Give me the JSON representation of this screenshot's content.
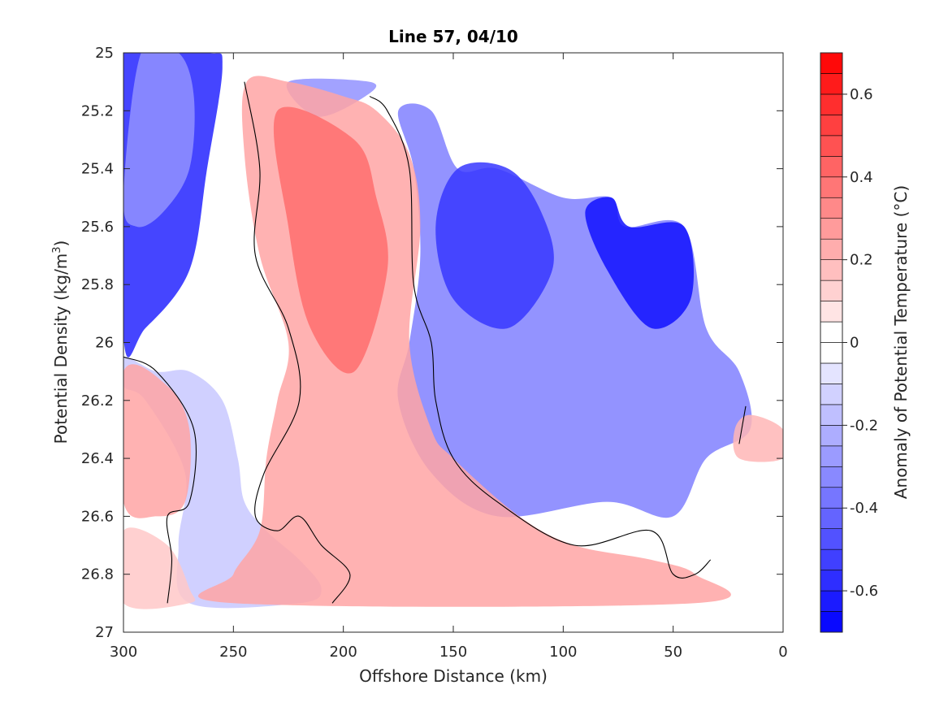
{
  "chart_data": {
    "type": "contour",
    "title": "Line 57, 04/10",
    "xlabel": "Offshore Distance (km)",
    "ylabel_main": "Potential Density (kg/m",
    "ylabel_sup": "3",
    "ylabel_close": ")",
    "xlim": [
      300,
      0
    ],
    "ylim": [
      25,
      27
    ],
    "x_reversed": true,
    "y_reversed": true,
    "xticks": [
      300,
      250,
      200,
      150,
      100,
      50,
      0
    ],
    "yticks": [
      25,
      25.2,
      25.4,
      25.6,
      25.8,
      26,
      26.2,
      26.4,
      26.6,
      26.8,
      27
    ],
    "colorbar": {
      "label": "Anomaly of Potential Temperature (°C)",
      "min": -0.7,
      "max": 0.7,
      "step": 0.05,
      "ticks": [
        -0.6,
        -0.4,
        -0.2,
        0,
        0.2,
        0.4,
        0.6
      ],
      "negative_color": "#0000ff",
      "positive_color": "#ff0000",
      "neutral_color": "#ffffff"
    },
    "zero_contour_color": "#000000",
    "regions": [
      {
        "sign": "negative",
        "level": -0.6,
        "points": [
          [
            300,
            25
          ],
          [
            262,
            25
          ],
          [
            255,
            25.05
          ],
          [
            262,
            25.4
          ],
          [
            270,
            25.75
          ],
          [
            290,
            25.95
          ],
          [
            300,
            25.98
          ]
        ]
      },
      {
        "sign": "negative",
        "level": -0.3,
        "points": [
          [
            292,
            25
          ],
          [
            275,
            25
          ],
          [
            268,
            25.15
          ],
          [
            270,
            25.4
          ],
          [
            282,
            25.55
          ],
          [
            294,
            25.6
          ],
          [
            300,
            25.5
          ]
        ]
      },
      {
        "sign": "negative",
        "level": -0.15,
        "points": [
          [
            300,
            26.05
          ],
          [
            285,
            26.1
          ],
          [
            270,
            26.1
          ],
          [
            255,
            26.2
          ],
          [
            248,
            26.4
          ],
          [
            245,
            26.55
          ],
          [
            235,
            26.65
          ],
          [
            220,
            26.75
          ],
          [
            210,
            26.85
          ],
          [
            220,
            26.9
          ],
          [
            270,
            26.9
          ],
          [
            275,
            26.7
          ],
          [
            272,
            26.45
          ],
          [
            290,
            26.2
          ],
          [
            300,
            26.15
          ]
        ]
      },
      {
        "sign": "negative",
        "level": -0.3,
        "points": [
          [
            188,
            25.1
          ],
          [
            225,
            25.1
          ],
          [
            212,
            25.22
          ],
          [
            190,
            25.15
          ]
        ]
      },
      {
        "sign": "negative",
        "level": -0.35,
        "points": [
          [
            175,
            25.2
          ],
          [
            160,
            25.2
          ],
          [
            148,
            25.4
          ],
          [
            130,
            25.4
          ],
          [
            100,
            25.5
          ],
          [
            78,
            25.5
          ],
          [
            72,
            25.6
          ],
          [
            45,
            25.6
          ],
          [
            35,
            25.95
          ],
          [
            20,
            26.1
          ],
          [
            15,
            26.3
          ],
          [
            35,
            26.4
          ],
          [
            50,
            26.6
          ],
          [
            80,
            26.55
          ],
          [
            130,
            26.6
          ],
          [
            160,
            26.45
          ],
          [
            175,
            26.2
          ],
          [
            170,
            26.0
          ],
          [
            165,
            25.7
          ],
          [
            168,
            25.4
          ]
        ]
      },
      {
        "sign": "negative",
        "level": -0.55,
        "points": [
          [
            148,
            25.4
          ],
          [
            125,
            25.4
          ],
          [
            110,
            25.55
          ],
          [
            105,
            25.75
          ],
          [
            125,
            25.95
          ],
          [
            150,
            25.85
          ],
          [
            158,
            25.6
          ]
        ]
      },
      {
        "sign": "negative",
        "level": -0.65,
        "points": [
          [
            78,
            25.5
          ],
          [
            70,
            25.6
          ],
          [
            45,
            25.6
          ],
          [
            42,
            25.85
          ],
          [
            60,
            25.95
          ],
          [
            80,
            25.75
          ],
          [
            90,
            25.55
          ]
        ]
      },
      {
        "sign": "positive",
        "level": 0.25,
        "points": [
          [
            244,
            25.1
          ],
          [
            225,
            25.1
          ],
          [
            200,
            25.15
          ],
          [
            185,
            25.2
          ],
          [
            170,
            25.35
          ],
          [
            165,
            25.6
          ],
          [
            170,
            26.0
          ],
          [
            160,
            26.3
          ],
          [
            150,
            26.4
          ],
          [
            120,
            26.6
          ],
          [
            95,
            26.7
          ],
          [
            60,
            26.75
          ],
          [
            40,
            26.8
          ],
          [
            40,
            26.9
          ],
          [
            250,
            26.9
          ],
          [
            250,
            26.8
          ],
          [
            238,
            26.65
          ],
          [
            235,
            26.4
          ],
          [
            230,
            26.2
          ],
          [
            225,
            26.0
          ],
          [
            238,
            25.7
          ],
          [
            245,
            25.35
          ]
        ]
      },
      {
        "sign": "positive",
        "level": 0.4,
        "points": [
          [
            230,
            25.2
          ],
          [
            195,
            25.3
          ],
          [
            185,
            25.5
          ],
          [
            180,
            25.75
          ],
          [
            195,
            26.1
          ],
          [
            215,
            25.95
          ],
          [
            225,
            25.6
          ]
        ]
      },
      {
        "sign": "positive",
        "level": 0.25,
        "points": [
          [
            300,
            26.1
          ],
          [
            280,
            26.15
          ],
          [
            270,
            26.3
          ],
          [
            272,
            26.55
          ],
          [
            285,
            26.6
          ],
          [
            300,
            26.55
          ]
        ]
      },
      {
        "sign": "positive",
        "level": 0.15,
        "points": [
          [
            300,
            26.65
          ],
          [
            280,
            26.7
          ],
          [
            270,
            26.85
          ],
          [
            270,
            26.9
          ],
          [
            300,
            26.9
          ]
        ]
      },
      {
        "sign": "positive",
        "level": 0.2,
        "points": [
          [
            22,
            26.3
          ],
          [
            15,
            26.25
          ],
          [
            0,
            26.3
          ],
          [
            0,
            26.4
          ],
          [
            20,
            26.4
          ]
        ]
      }
    ],
    "zero_contours": [
      [
        [
          245,
          25.1
        ],
        [
          238,
          25.4
        ],
        [
          240,
          25.7
        ],
        [
          225,
          25.95
        ],
        [
          220,
          26.2
        ],
        [
          236,
          26.45
        ],
        [
          240,
          26.6
        ],
        [
          230,
          26.65
        ],
        [
          220,
          26.6
        ],
        [
          210,
          26.7
        ],
        [
          197,
          26.8
        ],
        [
          205,
          26.9
        ]
      ],
      [
        [
          188,
          25.15
        ],
        [
          180,
          25.2
        ],
        [
          170,
          25.4
        ],
        [
          168,
          25.8
        ],
        [
          160,
          26.0
        ],
        [
          158,
          26.2
        ],
        [
          150,
          26.4
        ],
        [
          130,
          26.55
        ],
        [
          95,
          26.7
        ],
        [
          60,
          26.65
        ],
        [
          50,
          26.8
        ],
        [
          40,
          26.8
        ],
        [
          33,
          26.75
        ]
      ],
      [
        [
          300,
          26.05
        ],
        [
          285,
          26.1
        ],
        [
          268,
          26.3
        ],
        [
          270,
          26.55
        ],
        [
          280,
          26.6
        ],
        [
          278,
          26.75
        ],
        [
          280,
          26.9
        ]
      ],
      [
        [
          20,
          26.35
        ],
        [
          17,
          26.22
        ]
      ]
    ]
  }
}
